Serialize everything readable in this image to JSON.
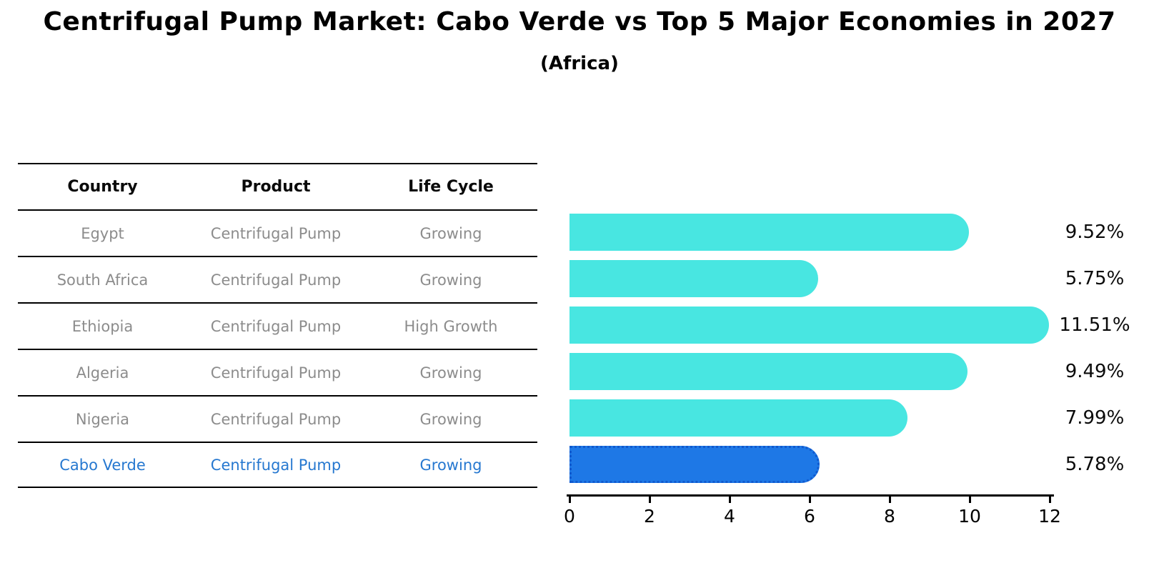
{
  "title": "Centrifugal Pump Market: Cabo Verde vs Top 5 Major Economies in 2027",
  "subtitle": "(Africa)",
  "table": {
    "headers": [
      "Country",
      "Product",
      "Life Cycle"
    ],
    "rows": [
      {
        "country": "Egypt",
        "product": "Centrifugal Pump",
        "life_cycle": "Growing",
        "share": "9.52%",
        "highlight": false
      },
      {
        "country": "South Africa",
        "product": "Centrifugal Pump",
        "life_cycle": "Growing",
        "share": "5.75%",
        "highlight": false
      },
      {
        "country": "Ethiopia",
        "product": "Centrifugal Pump",
        "life_cycle": "High Growth",
        "share": "11.51%",
        "highlight": false
      },
      {
        "country": "Algeria",
        "product": "Centrifugal Pump",
        "life_cycle": "Growing",
        "share": "9.49%",
        "highlight": false
      },
      {
        "country": "Nigeria",
        "product": "Centrifugal Pump",
        "life_cycle": "Growing",
        "share": "7.99%",
        "highlight": false
      },
      {
        "country": "Cabo Verde",
        "product": "Centrifugal Pump",
        "life_cycle": "Growing",
        "share": "5.78%",
        "highlight": true
      }
    ]
  },
  "chart_data": {
    "type": "bar",
    "orientation": "horizontal",
    "title": "Centrifugal Pump Market: Cabo Verde vs Top 5 Major Economies in 2027 (Africa)",
    "categories": [
      "Egypt",
      "South Africa",
      "Ethiopia",
      "Algeria",
      "Nigeria",
      "Cabo Verde"
    ],
    "values": [
      9.52,
      5.75,
      11.51,
      9.49,
      7.99,
      5.78
    ],
    "value_labels": [
      "9.52%",
      "5.75%",
      "11.51%",
      "9.49%",
      "7.99%",
      "5.78%"
    ],
    "unit": "percent",
    "xlim": [
      0,
      12
    ],
    "xticks": [
      0,
      2,
      4,
      6,
      8,
      10,
      12
    ],
    "grid": false,
    "legend": false,
    "highlight_index": 5,
    "bar_color": "#48E6E1",
    "highlight_color": "#1E78E6",
    "highlight_border_color": "#1059CE"
  },
  "colors": {
    "background": "#FFFFFF",
    "text": "#000000",
    "muted_text": "#8C8C8C",
    "accent_text": "#2678D0",
    "table_line": "#000000"
  }
}
